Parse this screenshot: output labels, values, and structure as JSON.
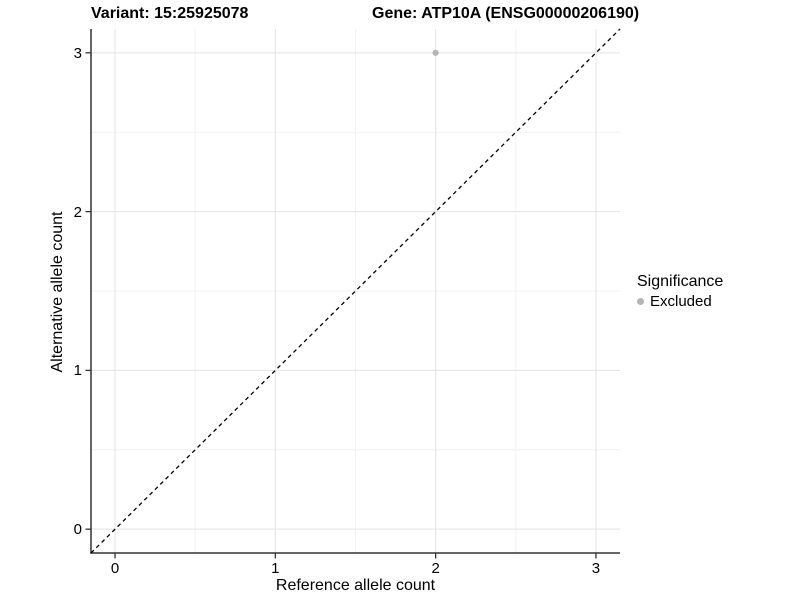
{
  "title": {
    "variant": "Variant: 15:25925078",
    "gene": "Gene: ATP10A (ENSG00000206190)"
  },
  "axes": {
    "x_label": "Reference allele count",
    "y_label": "Alternative allele count"
  },
  "legend": {
    "title": "Significance",
    "items": [
      {
        "label": "Excluded",
        "color": "#b5b5b5"
      }
    ]
  },
  "chart_data": {
    "type": "scatter",
    "title": "Variant: 15:25925078   Gene: ATP10A (ENSG00000206190)",
    "xlabel": "Reference allele count",
    "ylabel": "Alternative allele count",
    "xlim": [
      -0.15,
      3.15
    ],
    "ylim": [
      -0.15,
      3.15
    ],
    "x_ticks": [
      0,
      1,
      2,
      3
    ],
    "y_ticks": [
      0,
      1,
      2,
      3
    ],
    "x_minor_ticks": [
      0.5,
      1.5,
      2.5
    ],
    "y_minor_ticks": [
      0.5,
      1.5,
      2.5
    ],
    "grid": "on",
    "legend_position": "right",
    "series": [
      {
        "name": "Excluded",
        "color": "#b5b5b5",
        "points": [
          {
            "x": 2,
            "y": 3
          }
        ]
      }
    ],
    "reference_line": {
      "type": "identity y=x",
      "style": "dashed",
      "color": "#000000"
    },
    "colors": {
      "background": "#ffffff",
      "grid_major": "#e3e3e3",
      "grid_minor": "#f1f1f1",
      "axis_line": "#333333",
      "tick_mark": "#333333",
      "text": "#000000"
    }
  }
}
